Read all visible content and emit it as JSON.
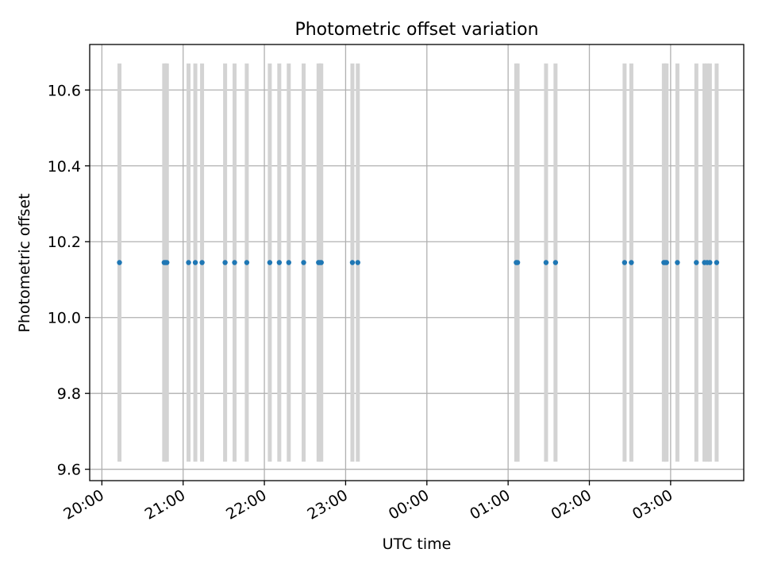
{
  "chart_data": {
    "type": "scatter",
    "title": "Photometric offset variation",
    "xlabel": "UTC time",
    "ylabel": "Photometric offset",
    "xlim": [
      "19:51",
      "03:54"
    ],
    "ylim": [
      9.57,
      10.72
    ],
    "x_ticks": [
      "20:00",
      "21:00",
      "22:00",
      "23:00",
      "00:00",
      "01:00",
      "02:00",
      "03:00"
    ],
    "y_ticks": [
      "9.6",
      "9.8",
      "10.0",
      "10.2",
      "10.4",
      "10.6"
    ],
    "grid": true,
    "point_color": "#1f77b4",
    "errorbar_color": "#d3d3d3",
    "series": [
      {
        "x": [
          "20:13",
          "20:46",
          "20:47",
          "20:48",
          "21:04",
          "21:09",
          "21:14",
          "21:31",
          "21:38",
          "21:47",
          "22:04",
          "22:11",
          "22:18",
          "22:29",
          "22:40",
          "22:41",
          "22:42",
          "23:05",
          "23:09",
          "01:06",
          "01:07",
          "01:28",
          "01:35",
          "02:26",
          "02:31",
          "02:55",
          "02:56",
          "02:57",
          "03:05",
          "03:19",
          "03:25",
          "03:27",
          "03:29",
          "03:34"
        ],
        "y": [
          10.145,
          10.145,
          10.145,
          10.145,
          10.145,
          10.145,
          10.145,
          10.145,
          10.145,
          10.145,
          10.145,
          10.145,
          10.145,
          10.145,
          10.145,
          10.145,
          10.145,
          10.145,
          10.145,
          10.145,
          10.145,
          10.145,
          10.145,
          10.145,
          10.145,
          10.145,
          10.145,
          10.145,
          10.145,
          10.145,
          10.145,
          10.145,
          10.145,
          10.145
        ],
        "err": 0.525
      }
    ]
  }
}
